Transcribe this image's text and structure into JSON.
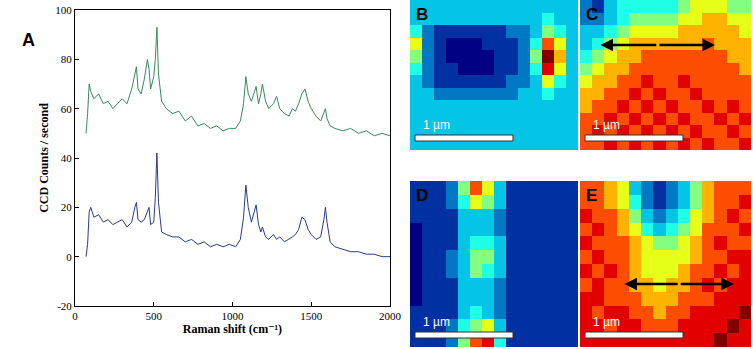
{
  "chart_data": [
    {
      "type": "line",
      "title": "A",
      "x_label": "Raman shift (cm⁻¹)",
      "y_label": "CCD Counts / second",
      "x": [
        70,
        80,
        90,
        100,
        120,
        150,
        180,
        210,
        240,
        270,
        300,
        330,
        360,
        380,
        390,
        400,
        420,
        440,
        460,
        470,
        480,
        500,
        510,
        520,
        530,
        550,
        580,
        620,
        660,
        700,
        740,
        780,
        820,
        860,
        900,
        940,
        980,
        1020,
        1050,
        1070,
        1085,
        1100,
        1120,
        1140,
        1150,
        1165,
        1180,
        1190,
        1210,
        1230,
        1260,
        1280,
        1300,
        1330,
        1360,
        1380,
        1400,
        1420,
        1440,
        1460,
        1480,
        1500,
        1530,
        1560,
        1580,
        1590,
        1600,
        1620,
        1650,
        1700,
        1750,
        1800,
        1850,
        1900,
        1950,
        2000
      ],
      "series": [
        {
          "color": "#3a8a5e",
          "values": [
            50,
            58,
            70,
            67,
            64,
            66,
            62,
            63,
            60,
            62,
            64,
            62,
            68,
            74,
            77,
            68,
            66,
            72,
            80,
            76,
            68,
            73,
            80,
            93,
            74,
            63,
            60,
            58,
            59,
            55,
            57,
            53,
            54,
            52,
            53,
            51,
            52,
            52,
            55,
            62,
            73,
            66,
            63,
            67,
            69,
            62,
            66,
            70,
            63,
            60,
            62,
            65,
            60,
            58,
            57,
            60,
            59,
            62,
            66,
            68,
            63,
            60,
            57,
            55,
            58,
            60,
            56,
            53,
            52,
            51,
            52,
            50,
            51,
            49,
            50,
            49
          ]
        },
        {
          "color": "#2b3a8c",
          "values": [
            0,
            5,
            18,
            20,
            16,
            17,
            14,
            15,
            13,
            14,
            15,
            12,
            14,
            20,
            22,
            15,
            14,
            15,
            19,
            20,
            13,
            14,
            24,
            42,
            22,
            10,
            9,
            8,
            8,
            6,
            7,
            5,
            6,
            4,
            5,
            4,
            5,
            4,
            7,
            16,
            29,
            20,
            14,
            19,
            21,
            13,
            10,
            12,
            8,
            7,
            9,
            7,
            8,
            6,
            7,
            8,
            9,
            11,
            16,
            15,
            11,
            9,
            7,
            8,
            15,
            20,
            14,
            6,
            4,
            3,
            2,
            2,
            1,
            1,
            0,
            0
          ]
        }
      ],
      "xlim": [
        0,
        2000
      ],
      "xticks": [
        0,
        500,
        1000,
        1500,
        2000
      ],
      "ylim": [
        -20,
        100
      ],
      "yticks": [
        -20,
        0,
        20,
        40,
        60,
        80,
        100
      ],
      "grid": false
    },
    {
      "type": "heatmap",
      "title": "B",
      "annotations": [
        "1 µm"
      ],
      "color": "Jet",
      "zlim": [
        0,
        10
      ],
      "tick_labels": false,
      "cells": [
        [
          3,
          3,
          3,
          3,
          3,
          3,
          3,
          3,
          3,
          3,
          3,
          3,
          3,
          3
        ],
        [
          3,
          3,
          3,
          3,
          3,
          3,
          3,
          3,
          3,
          3,
          3,
          4,
          3,
          3
        ],
        [
          4,
          2,
          1,
          1,
          1,
          1,
          1,
          1,
          2,
          2,
          3,
          5,
          4,
          3
        ],
        [
          6,
          2,
          1,
          0,
          0,
          0,
          1,
          1,
          1,
          2,
          4,
          8,
          6,
          3
        ],
        [
          5,
          2,
          1,
          0,
          0,
          0,
          0,
          1,
          1,
          2,
          5,
          10,
          7,
          3
        ],
        [
          4,
          2,
          1,
          1,
          0,
          0,
          0,
          1,
          1,
          2,
          4,
          9,
          6,
          3
        ],
        [
          3,
          2,
          1,
          1,
          1,
          1,
          1,
          1,
          2,
          2,
          3,
          6,
          4,
          3
        ],
        [
          3,
          3,
          2,
          2,
          2,
          2,
          2,
          2,
          2,
          3,
          3,
          4,
          3,
          3
        ],
        [
          3,
          3,
          3,
          3,
          3,
          3,
          3,
          3,
          3,
          3,
          3,
          3,
          3,
          3
        ],
        [
          3,
          3,
          3,
          3,
          3,
          3,
          3,
          3,
          3,
          3,
          3,
          3,
          3,
          3
        ],
        [
          3,
          3,
          3,
          3,
          3,
          3,
          3,
          3,
          3,
          3,
          3,
          3,
          3,
          3
        ],
        [
          3,
          3,
          3,
          3,
          3,
          3,
          3,
          3,
          3,
          3,
          3,
          3,
          3,
          3
        ]
      ]
    },
    {
      "type": "heatmap",
      "title": "C",
      "annotations": [
        "1 µm"
      ],
      "color": "Jet",
      "zlim": [
        0,
        10
      ],
      "tick_labels": false,
      "cells": [
        [
          2,
          1,
          3,
          4,
          4,
          4,
          4,
          4,
          5,
          6,
          6,
          6,
          5,
          5
        ],
        [
          2,
          2,
          3,
          4,
          5,
          5,
          5,
          5,
          6,
          6,
          7,
          7,
          6,
          6
        ],
        [
          3,
          3,
          4,
          5,
          6,
          6,
          6,
          6,
          7,
          7,
          7,
          7,
          7,
          6
        ],
        [
          3,
          4,
          5,
          6,
          7,
          7,
          7,
          7,
          7,
          7,
          8,
          7,
          7,
          7
        ],
        [
          4,
          5,
          6,
          7,
          7,
          8,
          8,
          8,
          8,
          8,
          8,
          8,
          7,
          7
        ],
        [
          5,
          6,
          7,
          7,
          8,
          8,
          8,
          8,
          8,
          8,
          8,
          8,
          8,
          7
        ],
        [
          6,
          7,
          7,
          8,
          8,
          9,
          8,
          8,
          9,
          8,
          8,
          8,
          8,
          8
        ],
        [
          7,
          7,
          8,
          8,
          9,
          8,
          9,
          8,
          8,
          9,
          8,
          8,
          8,
          8
        ],
        [
          7,
          8,
          8,
          9,
          8,
          9,
          8,
          9,
          8,
          8,
          9,
          8,
          9,
          8
        ],
        [
          8,
          8,
          9,
          8,
          9,
          8,
          9,
          8,
          9,
          8,
          8,
          9,
          8,
          9
        ],
        [
          8,
          9,
          8,
          9,
          8,
          9,
          8,
          9,
          8,
          9,
          8,
          8,
          9,
          8
        ],
        [
          8,
          8,
          9,
          8,
          9,
          8,
          9,
          8,
          9,
          8,
          9,
          8,
          8,
          9
        ]
      ]
    },
    {
      "type": "heatmap",
      "title": "D",
      "annotations": [
        "1 µm"
      ],
      "color": "Jet",
      "zlim": [
        0,
        10
      ],
      "tick_labels": false,
      "cells": [
        [
          1,
          1,
          1,
          2,
          5,
          8,
          6,
          3,
          1,
          1,
          1,
          1,
          1,
          1
        ],
        [
          1,
          1,
          1,
          2,
          4,
          6,
          5,
          3,
          1,
          1,
          1,
          1,
          1,
          1
        ],
        [
          1,
          1,
          1,
          1,
          3,
          3,
          3,
          2,
          1,
          1,
          1,
          1,
          1,
          1
        ],
        [
          0,
          1,
          1,
          1,
          3,
          3,
          3,
          2,
          1,
          1,
          1,
          1,
          1,
          1
        ],
        [
          0,
          1,
          1,
          1,
          3,
          4,
          4,
          3,
          1,
          1,
          1,
          1,
          1,
          1
        ],
        [
          0,
          1,
          1,
          2,
          3,
          5,
          5,
          3,
          1,
          1,
          1,
          1,
          1,
          1
        ],
        [
          0,
          1,
          1,
          2,
          3,
          5,
          4,
          3,
          1,
          1,
          1,
          1,
          1,
          1
        ],
        [
          0,
          1,
          1,
          1,
          3,
          3,
          3,
          2,
          1,
          1,
          1,
          1,
          1,
          1
        ],
        [
          0,
          1,
          1,
          1,
          3,
          3,
          3,
          2,
          1,
          1,
          1,
          1,
          1,
          1
        ],
        [
          1,
          1,
          1,
          1,
          3,
          4,
          3,
          2,
          1,
          1,
          1,
          1,
          1,
          1
        ],
        [
          1,
          1,
          1,
          2,
          4,
          5,
          6,
          3,
          1,
          1,
          1,
          1,
          1,
          1
        ],
        [
          1,
          1,
          1,
          2,
          5,
          8,
          9,
          4,
          1,
          1,
          1,
          1,
          1,
          1
        ]
      ]
    },
    {
      "type": "heatmap",
      "title": "E",
      "annotations": [
        "1 µm"
      ],
      "color": "Jet",
      "zlim": [
        0,
        10
      ],
      "tick_labels": false,
      "cells": [
        [
          8,
          8,
          7,
          6,
          3,
          2,
          1,
          2,
          3,
          5,
          7,
          8,
          8,
          8
        ],
        [
          8,
          8,
          7,
          6,
          4,
          2,
          1,
          2,
          3,
          5,
          7,
          8,
          8,
          9
        ],
        [
          9,
          8,
          8,
          7,
          5,
          3,
          2,
          3,
          4,
          6,
          7,
          8,
          9,
          8
        ],
        [
          8,
          9,
          8,
          7,
          6,
          4,
          3,
          4,
          5,
          6,
          8,
          8,
          8,
          9
        ],
        [
          9,
          8,
          8,
          8,
          7,
          6,
          5,
          5,
          6,
          7,
          8,
          9,
          8,
          8
        ],
        [
          8,
          9,
          8,
          8,
          7,
          6,
          6,
          6,
          6,
          7,
          8,
          8,
          9,
          9
        ],
        [
          9,
          8,
          9,
          8,
          7,
          6,
          6,
          6,
          7,
          8,
          8,
          9,
          8,
          9
        ],
        [
          8,
          9,
          8,
          8,
          7,
          7,
          6,
          7,
          7,
          8,
          9,
          8,
          9,
          9
        ],
        [
          9,
          9,
          8,
          8,
          8,
          7,
          7,
          7,
          8,
          8,
          8,
          9,
          9,
          9
        ],
        [
          9,
          8,
          9,
          9,
          8,
          8,
          7,
          8,
          8,
          9,
          9,
          9,
          9,
          10
        ],
        [
          9,
          9,
          8,
          9,
          9,
          8,
          8,
          8,
          9,
          9,
          9,
          9,
          10,
          9
        ],
        [
          9,
          9,
          9,
          9,
          9,
          9,
          9,
          9,
          9,
          9,
          9,
          10,
          9,
          9
        ]
      ]
    }
  ]
}
